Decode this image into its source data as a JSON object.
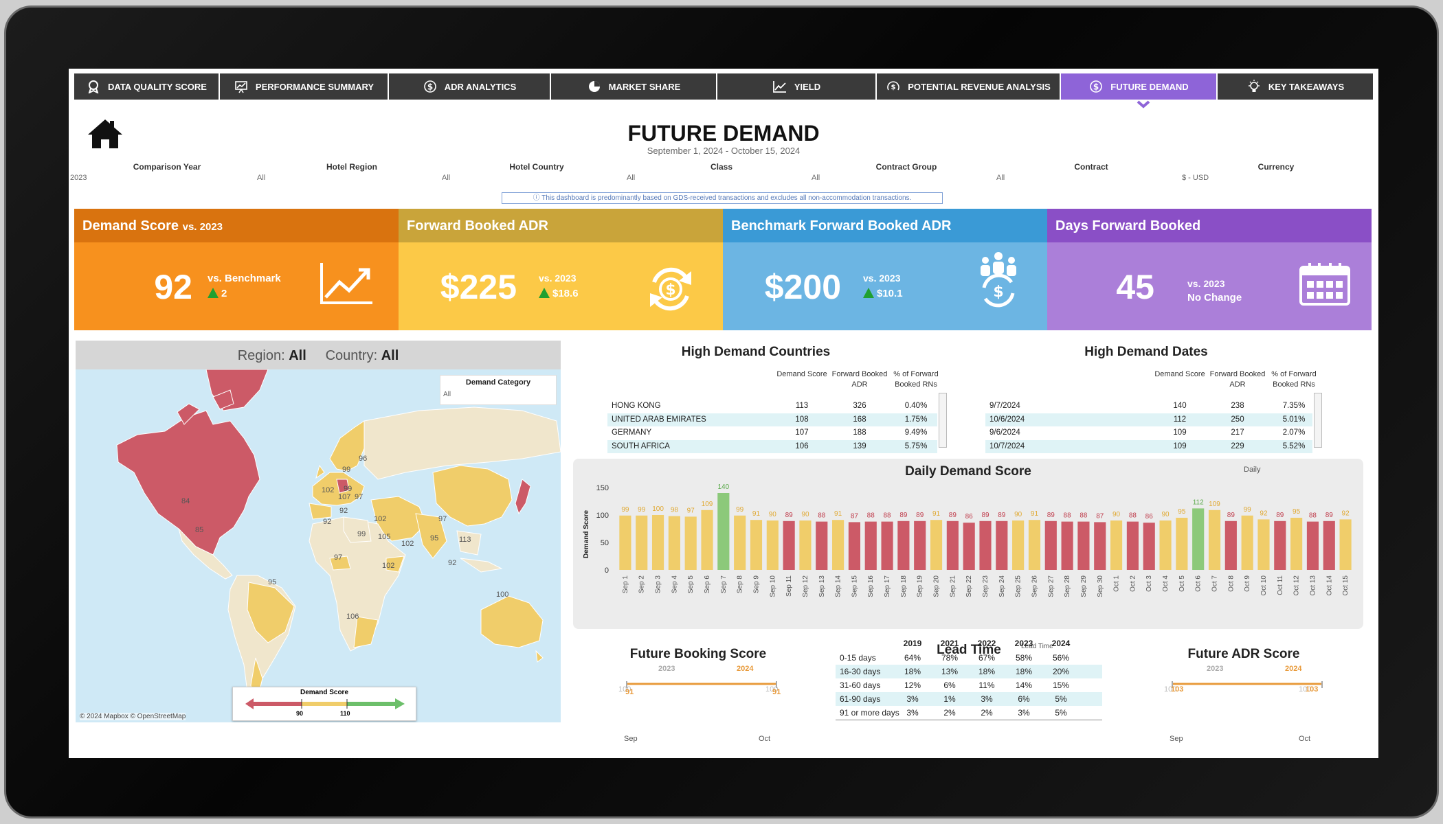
{
  "nav": [
    {
      "label": "DATA QUALITY SCORE",
      "icon": "badge-icon"
    },
    {
      "label": "PERFORMANCE SUMMARY",
      "icon": "presentation-chart-icon"
    },
    {
      "label": "ADR ANALYTICS",
      "icon": "dollar-circle-icon"
    },
    {
      "label": "MARKET SHARE",
      "icon": "pie-chart-icon"
    },
    {
      "label": "YIELD",
      "icon": "line-chart-icon"
    },
    {
      "label": "POTENTIAL REVENUE ANALYSIS",
      "icon": "dollar-gauge-icon"
    },
    {
      "label": "FUTURE DEMAND",
      "icon": "dollar-circle-icon",
      "active": true
    },
    {
      "label": "KEY TAKEAWAYS",
      "icon": "lightbulb-icon"
    }
  ],
  "page": {
    "title": "FUTURE DEMAND",
    "date_range": "September 1, 2024 - October 15, 2024"
  },
  "filters": [
    {
      "label": "Comparison Year",
      "value": "2023"
    },
    {
      "label": "Hotel Region",
      "value": "All"
    },
    {
      "label": "Hotel Country",
      "value": "All"
    },
    {
      "label": "Class",
      "value": "All"
    },
    {
      "label": "Contract Group",
      "value": "All"
    },
    {
      "label": "Contract",
      "value": "All"
    },
    {
      "label": "Currency",
      "value": "$ - USD"
    }
  ],
  "note": "ⓘ This dashboard is predominantly based on GDS-received transactions and excludes all non-accommodation transactions.",
  "kpis": [
    {
      "title": "Demand Score",
      "title_suffix": "vs. 2023",
      "value": "92",
      "sub1": "vs. Benchmark",
      "sub2": "2",
      "color_head": "#d9730f",
      "color_body": "#f7911e",
      "icon": "trend-up-icon"
    },
    {
      "title": "Forward Booked ADR",
      "title_suffix": "",
      "value": "$225",
      "sub1": "vs. 2023",
      "sub2": "$18.6",
      "color_head": "#c9a43a",
      "color_body": "#fcc947",
      "icon": "dollar-cycle-icon"
    },
    {
      "title": "Benchmark Forward Booked ADR",
      "title_suffix": "",
      "value": "$200",
      "sub1": "vs. 2023",
      "sub2": "$10.1",
      "color_head": "#3a9ad6",
      "color_body": "#6cb5e3",
      "icon": "people-dollar-icon"
    },
    {
      "title": "Days Forward Booked",
      "title_suffix": "",
      "value": "45",
      "sub1": "vs. 2023",
      "sub2": "No Change",
      "color_head": "#8a4fc6",
      "color_body": "#ab7fd9",
      "icon": "calendar-icon"
    }
  ],
  "map": {
    "region_label": "Region:",
    "region_value": "All",
    "country_label": "Country:",
    "country_value": "All",
    "demand_category_label": "Demand Category",
    "demand_category_value": "All",
    "legend_title": "Demand Score",
    "legend_low": "90",
    "legend_high": "110",
    "copyright": "© 2024 Mapbox © OpenStreetMap",
    "labels": [
      "84",
      "85",
      "96",
      "99",
      "99",
      "102",
      "107",
      "97",
      "92",
      "92",
      "102",
      "97",
      "99",
      "105",
      "102",
      "95",
      "113",
      "97",
      "102",
      "92",
      "95",
      "106",
      "100"
    ]
  },
  "high_demand_countries": {
    "title": "High Demand Countries",
    "headers": [
      "Demand Score",
      "Forward Booked ADR",
      "% of Forward Booked RNs"
    ],
    "rows": [
      [
        "HONG KONG",
        "113",
        "326",
        "0.40%"
      ],
      [
        "UNITED ARAB EMIRATES",
        "108",
        "168",
        "1.75%"
      ],
      [
        "GERMANY",
        "107",
        "188",
        "9.49%"
      ],
      [
        "SOUTH AFRICA",
        "106",
        "139",
        "5.75%"
      ]
    ]
  },
  "high_demand_dates": {
    "title": "High Demand Dates",
    "headers": [
      "Demand Score",
      "Forward Booked ADR",
      "% of Forward Booked RNs"
    ],
    "rows": [
      [
        "9/7/2024",
        "140",
        "238",
        "7.35%"
      ],
      [
        "10/6/2024",
        "112",
        "250",
        "5.01%"
      ],
      [
        "9/6/2024",
        "109",
        "217",
        "2.07%"
      ],
      [
        "10/7/2024",
        "109",
        "229",
        "5.52%"
      ]
    ]
  },
  "chart_data": {
    "type": "bar",
    "title": "Daily Demand Score",
    "granularity": "Daily",
    "ylabel": "Demand Score",
    "ylim": [
      0,
      150
    ],
    "yticks": [
      0,
      50,
      100,
      150
    ],
    "categories": [
      "Sep 1",
      "Sep 2",
      "Sep 3",
      "Sep 4",
      "Sep 5",
      "Sep 6",
      "Sep 7",
      "Sep 8",
      "Sep 9",
      "Sep 10",
      "Sep 11",
      "Sep 12",
      "Sep 13",
      "Sep 14",
      "Sep 15",
      "Sep 16",
      "Sep 17",
      "Sep 18",
      "Sep 19",
      "Sep 20",
      "Sep 21",
      "Sep 22",
      "Sep 23",
      "Sep 24",
      "Sep 25",
      "Sep 26",
      "Sep 27",
      "Sep 28",
      "Sep 29",
      "Sep 30",
      "Oct 1",
      "Oct 2",
      "Oct 3",
      "Oct 4",
      "Oct 5",
      "Oct 6",
      "Oct 7",
      "Oct 8",
      "Oct 9",
      "Oct 10",
      "Oct 11",
      "Oct 12",
      "Oct 13",
      "Oct 14",
      "Oct 15"
    ],
    "values": [
      99,
      99,
      100,
      98,
      97,
      109,
      140,
      99,
      91,
      90,
      89,
      90,
      88,
      91,
      87,
      88,
      88,
      89,
      89,
      91,
      89,
      86,
      89,
      89,
      90,
      91,
      89,
      88,
      88,
      87,
      90,
      88,
      86,
      90,
      95,
      112,
      109,
      89,
      99,
      92,
      89,
      95,
      88,
      89,
      92
    ],
    "colors": {
      "red": "#cc5a67",
      "yellow": "#f0cd6a",
      "green": "#8cc97a"
    }
  },
  "future_booking": {
    "title": "Future Booking Score",
    "year1": "2023",
    "year2": "2024",
    "start_1": "100",
    "start_2": "91",
    "end_1": "100",
    "end_2": "91",
    "x_start": "Sep",
    "x_end": "Oct"
  },
  "lead_time": {
    "title": "Lead Time",
    "filter_label": "Lead Time",
    "years": [
      "2019",
      "2021",
      "2022",
      "2023",
      "2024"
    ],
    "rows": [
      {
        "label": "0-15 days",
        "values": [
          "64%",
          "78%",
          "67%",
          "58%",
          "56%"
        ]
      },
      {
        "label": "16-30 days",
        "values": [
          "18%",
          "13%",
          "18%",
          "18%",
          "20%"
        ]
      },
      {
        "label": "31-60 days",
        "values": [
          "12%",
          "6%",
          "11%",
          "14%",
          "15%"
        ]
      },
      {
        "label": "61-90 days",
        "values": [
          "3%",
          "1%",
          "3%",
          "6%",
          "5%"
        ]
      },
      {
        "label": "91 or more days",
        "values": [
          "3%",
          "2%",
          "2%",
          "3%",
          "5%"
        ]
      }
    ]
  },
  "future_adr": {
    "title": "Future ADR Score",
    "year1": "2023",
    "year2": "2024",
    "start_1": "100",
    "start_2": "103",
    "end_1": "100",
    "end_2": "103",
    "x_start": "Sep",
    "x_end": "Oct"
  }
}
